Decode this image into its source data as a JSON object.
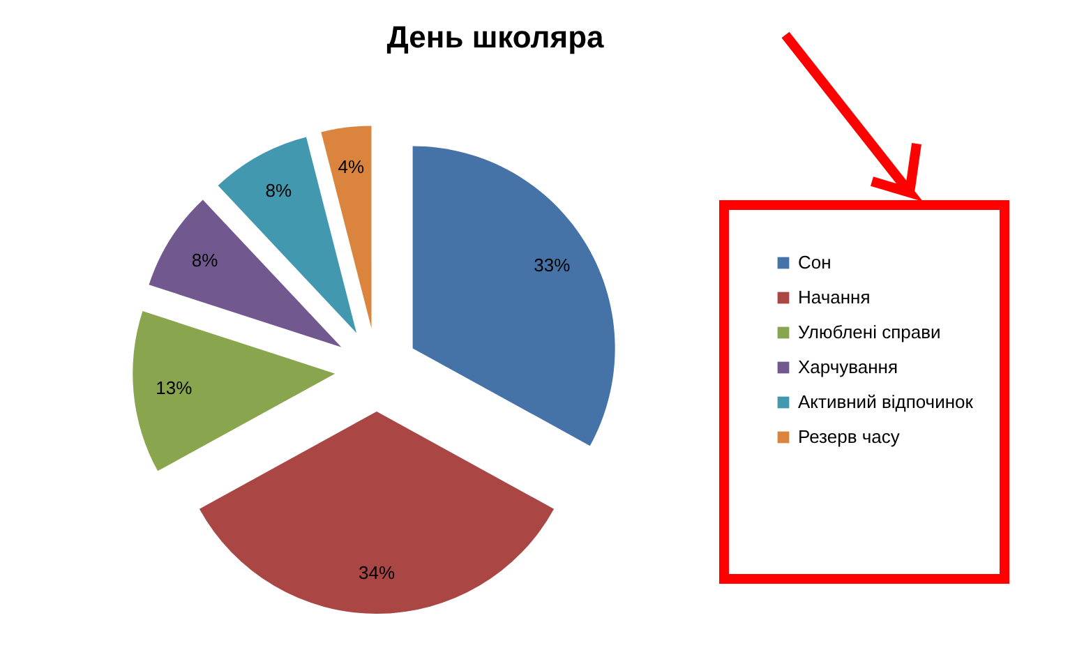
{
  "chart_data": {
    "type": "pie",
    "title": "День школяра",
    "categories": [
      "Сон",
      "Начання",
      "Улюблені справи",
      "Харчування",
      "Активний відпочинок",
      "Резерв часу"
    ],
    "values": [
      33,
      34,
      13,
      8,
      8,
      4
    ],
    "colors": [
      "#4572a7",
      "#aa4643",
      "#89a54e",
      "#71588f",
      "#4198af",
      "#db843d"
    ],
    "value_labels": [
      "33%",
      "34%",
      "13%",
      "8%",
      "8%",
      "4%"
    ],
    "legend": "right"
  }
}
